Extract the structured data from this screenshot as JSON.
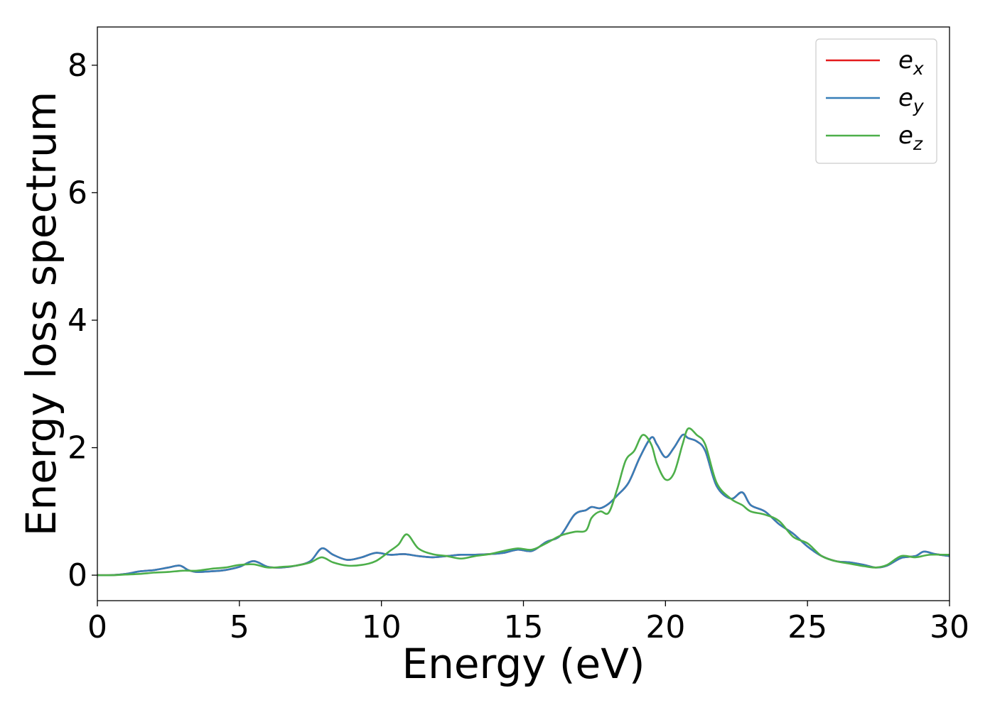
{
  "chart_data": {
    "type": "line",
    "title": "",
    "xlabel": "Energy (eV)",
    "ylabel": "Energy loss spectrum",
    "xlim": [
      0,
      30
    ],
    "ylim": [
      -0.4,
      8.6
    ],
    "xticks": [
      0,
      5,
      10,
      15,
      20,
      25,
      30
    ],
    "yticks": [
      0,
      2,
      4,
      6,
      8
    ],
    "grid": false,
    "legend_position": "top-right",
    "series": [
      {
        "name": "e_x",
        "label_base": "e",
        "label_sub": "x",
        "color": "#e41a1c",
        "x": [
          0,
          0.5,
          1.0,
          1.5,
          2.0,
          2.5,
          2.9,
          3.2,
          3.5,
          4.0,
          4.5,
          5.0,
          5.5,
          6.0,
          6.5,
          7.0,
          7.5,
          7.9,
          8.3,
          8.8,
          9.3,
          9.8,
          10.3,
          10.8,
          11.3,
          11.8,
          12.3,
          12.8,
          13.3,
          13.8,
          14.3,
          14.8,
          15.3,
          15.8,
          16.3,
          16.8,
          17.2,
          17.4,
          17.7,
          18.0,
          18.3,
          18.7,
          19.1,
          19.5,
          19.7,
          20.0,
          20.3,
          20.6,
          20.8,
          21.1,
          21.4,
          21.8,
          22.3,
          22.7,
          23.0,
          23.5,
          24.0,
          24.5,
          25.0,
          25.5,
          26.0,
          26.5,
          27.0,
          27.4,
          27.8,
          28.3,
          28.8,
          29.1,
          29.5,
          30.0
        ],
        "y": [
          0.0,
          0.0,
          0.02,
          0.06,
          0.08,
          0.12,
          0.15,
          0.08,
          0.05,
          0.06,
          0.08,
          0.13,
          0.22,
          0.13,
          0.12,
          0.15,
          0.22,
          0.42,
          0.32,
          0.24,
          0.28,
          0.35,
          0.32,
          0.33,
          0.3,
          0.28,
          0.3,
          0.32,
          0.32,
          0.33,
          0.35,
          0.4,
          0.38,
          0.52,
          0.62,
          0.95,
          1.02,
          1.07,
          1.05,
          1.12,
          1.25,
          1.45,
          1.85,
          2.16,
          2.05,
          1.85,
          2.0,
          2.2,
          2.15,
          2.1,
          1.95,
          1.4,
          1.2,
          1.3,
          1.1,
          1.0,
          0.8,
          0.65,
          0.45,
          0.3,
          0.22,
          0.2,
          0.16,
          0.12,
          0.15,
          0.27,
          0.3,
          0.37,
          0.33,
          0.3
        ]
      },
      {
        "name": "e_y",
        "label_base": "e",
        "label_sub": "y",
        "color": "#377eb8",
        "x": [
          0,
          0.5,
          1.0,
          1.5,
          2.0,
          2.5,
          2.9,
          3.2,
          3.5,
          4.0,
          4.5,
          5.0,
          5.5,
          6.0,
          6.5,
          7.0,
          7.5,
          7.9,
          8.3,
          8.8,
          9.3,
          9.8,
          10.3,
          10.8,
          11.3,
          11.8,
          12.3,
          12.8,
          13.3,
          13.8,
          14.3,
          14.8,
          15.3,
          15.8,
          16.3,
          16.8,
          17.2,
          17.4,
          17.7,
          18.0,
          18.3,
          18.7,
          19.1,
          19.5,
          19.7,
          20.0,
          20.3,
          20.6,
          20.8,
          21.1,
          21.4,
          21.8,
          22.3,
          22.7,
          23.0,
          23.5,
          24.0,
          24.5,
          25.0,
          25.5,
          26.0,
          26.5,
          27.0,
          27.4,
          27.8,
          28.3,
          28.8,
          29.1,
          29.5,
          30.0
        ],
        "y": [
          0.0,
          0.0,
          0.02,
          0.06,
          0.08,
          0.12,
          0.15,
          0.08,
          0.05,
          0.06,
          0.08,
          0.13,
          0.22,
          0.13,
          0.12,
          0.15,
          0.22,
          0.42,
          0.32,
          0.24,
          0.28,
          0.35,
          0.32,
          0.33,
          0.3,
          0.28,
          0.3,
          0.32,
          0.32,
          0.33,
          0.35,
          0.4,
          0.38,
          0.52,
          0.62,
          0.95,
          1.02,
          1.07,
          1.05,
          1.12,
          1.25,
          1.45,
          1.85,
          2.16,
          2.05,
          1.85,
          2.0,
          2.2,
          2.15,
          2.1,
          1.95,
          1.4,
          1.2,
          1.3,
          1.1,
          1.0,
          0.8,
          0.65,
          0.45,
          0.3,
          0.22,
          0.2,
          0.16,
          0.12,
          0.15,
          0.27,
          0.3,
          0.37,
          0.33,
          0.3
        ]
      },
      {
        "name": "e_z",
        "label_base": "e",
        "label_sub": "z",
        "color": "#4daf4a",
        "x": [
          0,
          0.5,
          1.0,
          1.5,
          2.0,
          2.5,
          3.0,
          3.5,
          4.0,
          4.5,
          5.0,
          5.5,
          6.0,
          6.5,
          7.0,
          7.5,
          7.9,
          8.3,
          8.8,
          9.3,
          9.8,
          10.3,
          10.6,
          10.9,
          11.3,
          11.8,
          12.3,
          12.8,
          13.3,
          13.8,
          14.3,
          14.8,
          15.3,
          15.8,
          16.3,
          16.8,
          17.2,
          17.4,
          17.7,
          18.0,
          18.3,
          18.6,
          18.9,
          19.2,
          19.5,
          19.7,
          20.0,
          20.3,
          20.6,
          20.8,
          21.1,
          21.4,
          21.8,
          22.3,
          22.7,
          23.0,
          23.5,
          24.0,
          24.5,
          25.0,
          25.5,
          26.0,
          26.5,
          27.0,
          27.4,
          27.8,
          28.3,
          28.8,
          29.3,
          30.0
        ],
        "y": [
          0.0,
          0.0,
          0.01,
          0.02,
          0.04,
          0.05,
          0.07,
          0.07,
          0.1,
          0.12,
          0.16,
          0.17,
          0.12,
          0.13,
          0.15,
          0.2,
          0.28,
          0.2,
          0.15,
          0.16,
          0.22,
          0.38,
          0.48,
          0.64,
          0.42,
          0.33,
          0.3,
          0.26,
          0.3,
          0.33,
          0.38,
          0.42,
          0.4,
          0.5,
          0.62,
          0.68,
          0.7,
          0.9,
          1.0,
          0.98,
          1.35,
          1.8,
          1.95,
          2.2,
          2.05,
          1.75,
          1.5,
          1.6,
          2.05,
          2.3,
          2.2,
          2.05,
          1.45,
          1.2,
          1.1,
          1.0,
          0.95,
          0.85,
          0.6,
          0.5,
          0.3,
          0.22,
          0.18,
          0.14,
          0.12,
          0.16,
          0.3,
          0.28,
          0.32,
          0.32
        ]
      }
    ]
  }
}
